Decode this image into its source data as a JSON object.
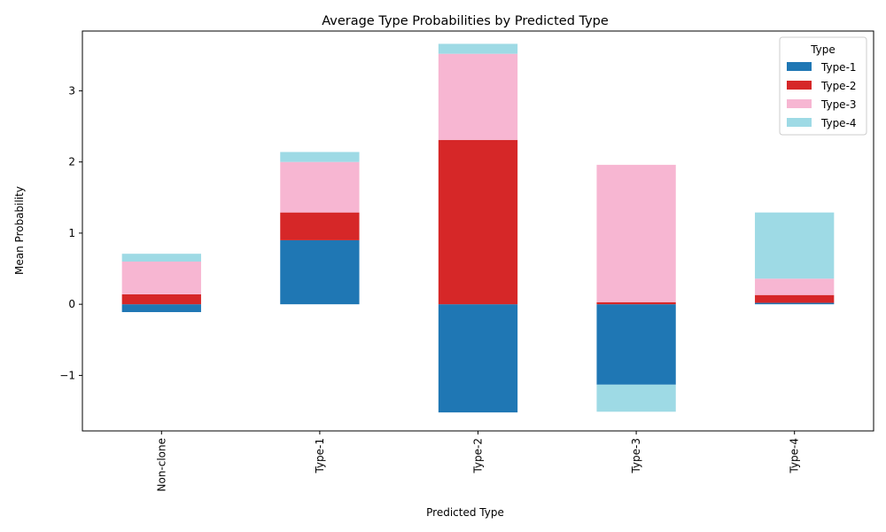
{
  "chart_data": {
    "type": "bar",
    "stacked": true,
    "title": "Average Type Probabilities by Predicted Type",
    "xlabel": "Predicted Type",
    "ylabel": "Mean Probability",
    "categories": [
      "Non-clone",
      "Type-1",
      "Type-2",
      "Type-3",
      "Type-4"
    ],
    "ylim": [
      -1.78,
      3.84
    ],
    "yticks": [
      -1,
      0,
      1,
      2,
      3
    ],
    "ytick_labels": [
      "−1",
      "0",
      "1",
      "2",
      "3"
    ],
    "grid": false,
    "legend": {
      "title": "Type",
      "placement": "top-right"
    },
    "series": [
      {
        "name": "Type-1",
        "color": "#1f77b4",
        "values": [
          -0.11,
          0.9,
          -1.52,
          -1.13,
          0.02
        ]
      },
      {
        "name": "Type-2",
        "color": "#d62728",
        "values": [
          0.14,
          0.39,
          2.31,
          0.03,
          0.11
        ]
      },
      {
        "name": "Type-3",
        "color": "#f7b6d2",
        "values": [
          0.46,
          0.71,
          1.21,
          1.93,
          0.23
        ]
      },
      {
        "name": "Type-4",
        "color": "#9edae5",
        "values": [
          0.11,
          0.14,
          0.14,
          -0.38,
          0.93
        ]
      }
    ]
  }
}
